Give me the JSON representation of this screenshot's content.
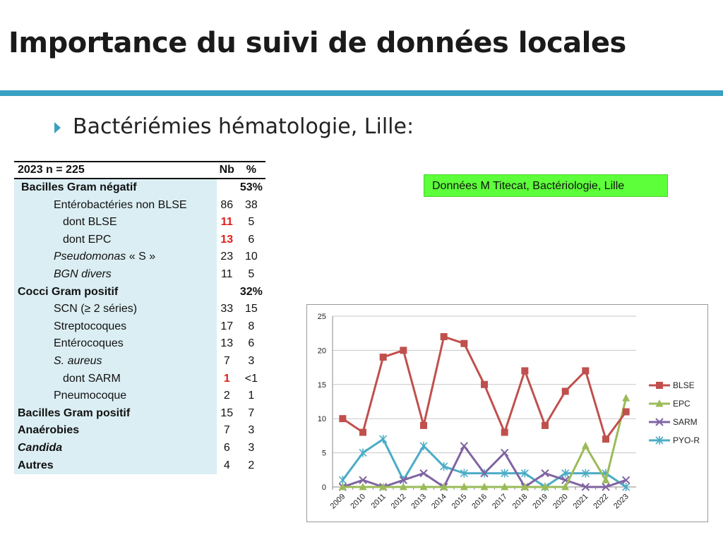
{
  "page": {
    "title": "Importance du suivi de données locales",
    "bullet": "Bactériémies hématologie, Lille:"
  },
  "source_note": "Données M Titecat, Bactériologie, Lille",
  "table": {
    "header": {
      "label": "2023 n = 225",
      "nb": "Nb",
      "pct": "%"
    },
    "rows": [
      {
        "label": "Bacilles Gram négatif",
        "nb": "",
        "pct": "53%",
        "style": "bold",
        "indent": 0.5
      },
      {
        "label": "Entérobactéries non BLSE",
        "nb": "86",
        "pct": "38",
        "style": "normal",
        "indent": 1
      },
      {
        "label": "dont BLSE",
        "nb": "11",
        "pct": "5",
        "style": "normal",
        "indent": 2,
        "nb_red": true
      },
      {
        "label": "dont EPC",
        "nb": "13",
        "pct": "6",
        "style": "normal",
        "indent": 2,
        "nb_red": true
      },
      {
        "label": "Pseudomonas « S »",
        "nb": "23",
        "pct": "10",
        "style": "pseudo",
        "indent": 1
      },
      {
        "label": "BGN divers",
        "nb": "11",
        "pct": "5",
        "style": "italic",
        "indent": 1
      },
      {
        "label": "Cocci Gram positif",
        "nb": "",
        "pct": "32%",
        "style": "bold",
        "indent": 0
      },
      {
        "label": "SCN (≥ 2 séries)",
        "nb": "33",
        "pct": "15",
        "style": "normal",
        "indent": 1
      },
      {
        "label": "Streptocoques",
        "nb": "17",
        "pct": "8",
        "style": "normal",
        "indent": 1
      },
      {
        "label": "Entérocoques",
        "nb": "13",
        "pct": "6",
        "style": "normal",
        "indent": 1
      },
      {
        "label": "S. aureus",
        "nb": "7",
        "pct": "3",
        "style": "italic",
        "indent": 1
      },
      {
        "label": "dont SARM",
        "nb": "1",
        "pct": "<1",
        "style": "normal",
        "indent": 2,
        "nb_red": true
      },
      {
        "label": "Pneumocoque",
        "nb": "2",
        "pct": "1",
        "style": "normal",
        "indent": 1
      },
      {
        "label": "Bacilles Gram positif",
        "nb": "15",
        "pct": "7",
        "style": "bold",
        "indent": 0
      },
      {
        "label": "Anaérobies",
        "nb": "7",
        "pct": "3",
        "style": "bold",
        "indent": 0
      },
      {
        "label": "Candida",
        "nb": "6",
        "pct": "3",
        "style": "bolditalic",
        "indent": 0
      },
      {
        "label": "Autres",
        "nb": "4",
        "pct": "2",
        "style": "bold",
        "indent": 0
      }
    ]
  },
  "chart_data": {
    "type": "line",
    "x": [
      "2009",
      "2010",
      "2011",
      "2012",
      "2013",
      "2014",
      "2015",
      "2016",
      "2017",
      "2018",
      "2019",
      "2020",
      "2021",
      "2022",
      "2023"
    ],
    "ylim": [
      0,
      25
    ],
    "yticks": [
      0,
      5,
      10,
      15,
      20,
      25
    ],
    "grid": "horizontal",
    "legend_position": "right",
    "series": [
      {
        "name": "BLSE",
        "color": "#c0504d",
        "marker": "square",
        "values": [
          10,
          8,
          19,
          20,
          9,
          22,
          21,
          15,
          8,
          17,
          9,
          14,
          17,
          7,
          11
        ]
      },
      {
        "name": "EPC",
        "color": "#9bbb59",
        "marker": "triangle",
        "values": [
          0,
          0,
          0,
          0,
          0,
          0,
          0,
          0,
          0,
          0,
          0,
          0,
          6,
          1,
          13
        ]
      },
      {
        "name": "SARM",
        "color": "#8064a2",
        "marker": "x",
        "values": [
          0,
          1,
          0,
          1,
          2,
          0,
          6,
          2,
          5,
          0,
          2,
          1,
          0,
          0,
          1
        ]
      },
      {
        "name": "PYO-R",
        "color": "#4bacc6",
        "marker": "star",
        "values": [
          1,
          5,
          7,
          1,
          6,
          3,
          2,
          2,
          2,
          2,
          0,
          2,
          2,
          2,
          0
        ]
      }
    ]
  }
}
